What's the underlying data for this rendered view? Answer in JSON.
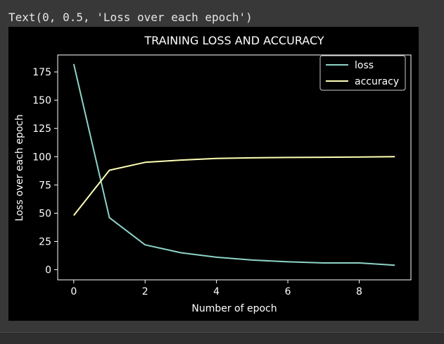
{
  "output_text": "Text(0, 0.5, 'Loss over each epoch')",
  "colors": {
    "loss": "#8dd3c7",
    "accuracy": "#feffb3",
    "axes": "#ffffff",
    "background": "#000000"
  },
  "chart_data": {
    "type": "line",
    "title": "TRAINING LOSS AND ACCURACY",
    "xlabel": "Number of epoch",
    "ylabel": "Loss over each epoch",
    "xlim": [
      -0.45,
      9.45
    ],
    "ylim": [
      -9,
      190
    ],
    "xticks": [
      0,
      2,
      4,
      6,
      8
    ],
    "yticks": [
      0,
      25,
      50,
      75,
      100,
      125,
      150,
      175
    ],
    "x": [
      0,
      1,
      2,
      3,
      4,
      5,
      6,
      7,
      8,
      9
    ],
    "series": [
      {
        "name": "loss",
        "color": "#8dd3c7",
        "values": [
          182,
          46,
          22,
          15,
          11,
          8.5,
          7,
          6,
          6,
          4
        ]
      },
      {
        "name": "accuracy",
        "color": "#feffb3",
        "values": [
          48,
          88,
          95,
          97,
          98.5,
          99,
          99.3,
          99.5,
          99.7,
          100
        ]
      }
    ],
    "legend_position": "top-right",
    "grid": false
  }
}
